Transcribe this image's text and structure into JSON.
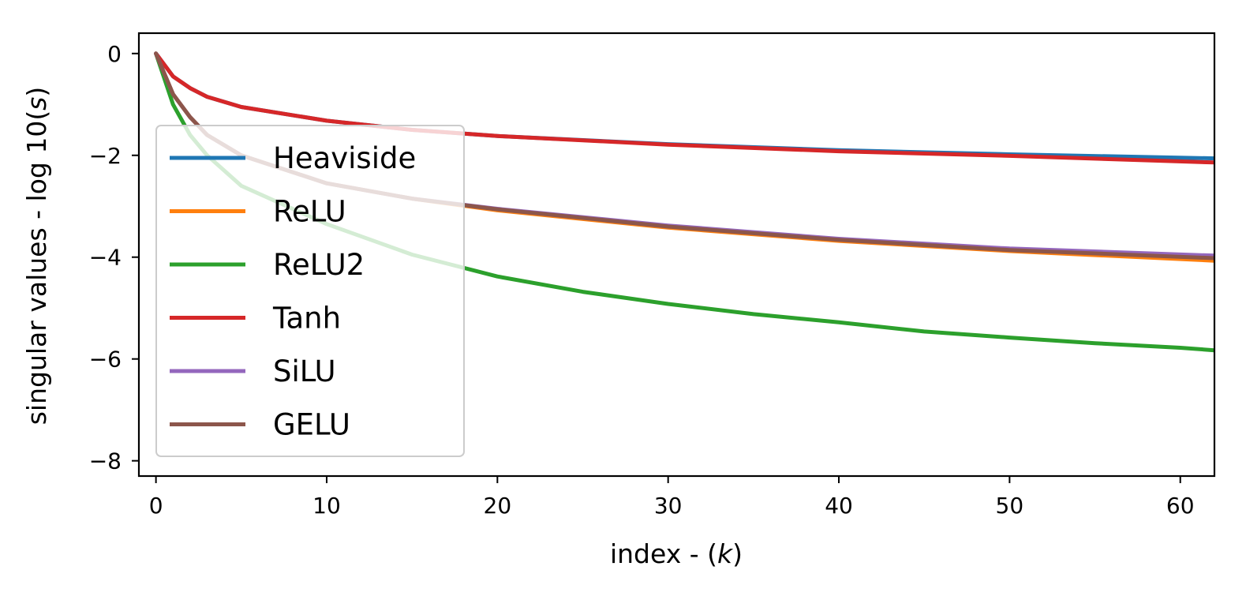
{
  "chart_data": {
    "type": "line",
    "xlabel": "index - (",
    "xlabel_var": "k",
    "xlabel_end": ")",
    "ylabel": "singular values - log 10(",
    "ylabel_var": "s",
    "ylabel_end": ")",
    "xlim": [
      -1,
      62
    ],
    "ylim": [
      -8.3,
      0.4
    ],
    "xticks": [
      0,
      10,
      20,
      30,
      40,
      50,
      60
    ],
    "yticks": [
      0,
      -2,
      -4,
      -6,
      -8
    ],
    "xtick_labels": [
      "0",
      "10",
      "20",
      "30",
      "40",
      "50",
      "60"
    ],
    "ytick_labels": [
      "0",
      "−2",
      "−4",
      "−6",
      "−8"
    ],
    "grid": false,
    "legend_position": "center-left",
    "series": [
      {
        "name": "Heaviside",
        "color": "#1f77b4",
        "x": [
          0,
          1,
          2,
          3,
          5,
          10,
          15,
          20,
          30,
          40,
          50,
          62
        ],
        "y": [
          0,
          -0.45,
          -0.68,
          -0.85,
          -1.05,
          -1.32,
          -1.5,
          -1.62,
          -1.78,
          -1.9,
          -1.98,
          -2.06
        ]
      },
      {
        "name": "ReLU",
        "color": "#ff7f0e",
        "x": [
          0,
          1,
          2,
          3,
          5,
          10,
          15,
          20,
          30,
          40,
          50,
          62
        ],
        "y": [
          0,
          -0.8,
          -1.25,
          -1.6,
          -2.0,
          -2.55,
          -2.85,
          -3.08,
          -3.42,
          -3.68,
          -3.88,
          -4.07
        ]
      },
      {
        "name": "ReLU2",
        "color": "#2ca02c",
        "x": [
          0,
          1,
          2,
          3,
          5,
          10,
          15,
          20,
          25,
          30,
          35,
          40,
          45,
          50,
          55,
          60,
          62
        ],
        "y": [
          0,
          -1.0,
          -1.6,
          -2.0,
          -2.6,
          -3.35,
          -3.95,
          -4.38,
          -4.68,
          -4.92,
          -5.12,
          -5.28,
          -5.46,
          -5.58,
          -5.69,
          -5.78,
          -5.83
        ]
      },
      {
        "name": "Tanh",
        "color": "#d62728",
        "x": [
          0,
          1,
          2,
          3,
          5,
          10,
          15,
          20,
          30,
          40,
          50,
          62
        ],
        "y": [
          0,
          -0.45,
          -0.68,
          -0.85,
          -1.05,
          -1.32,
          -1.5,
          -1.62,
          -1.79,
          -1.92,
          -2.01,
          -2.14
        ]
      },
      {
        "name": "SiLU",
        "color": "#9467bd",
        "x": [
          0,
          1,
          2,
          3,
          5,
          10,
          15,
          20,
          30,
          40,
          50,
          62
        ],
        "y": [
          0,
          -0.8,
          -1.25,
          -1.6,
          -2.0,
          -2.55,
          -2.85,
          -3.05,
          -3.38,
          -3.64,
          -3.83,
          -3.97
        ]
      },
      {
        "name": "GELU",
        "color": "#8c564b",
        "x": [
          0,
          1,
          2,
          3,
          5,
          10,
          15,
          20,
          30,
          40,
          50,
          62
        ],
        "y": [
          0,
          -0.8,
          -1.25,
          -1.6,
          -2.0,
          -2.55,
          -2.85,
          -3.06,
          -3.4,
          -3.66,
          -3.86,
          -4.02
        ]
      }
    ]
  }
}
